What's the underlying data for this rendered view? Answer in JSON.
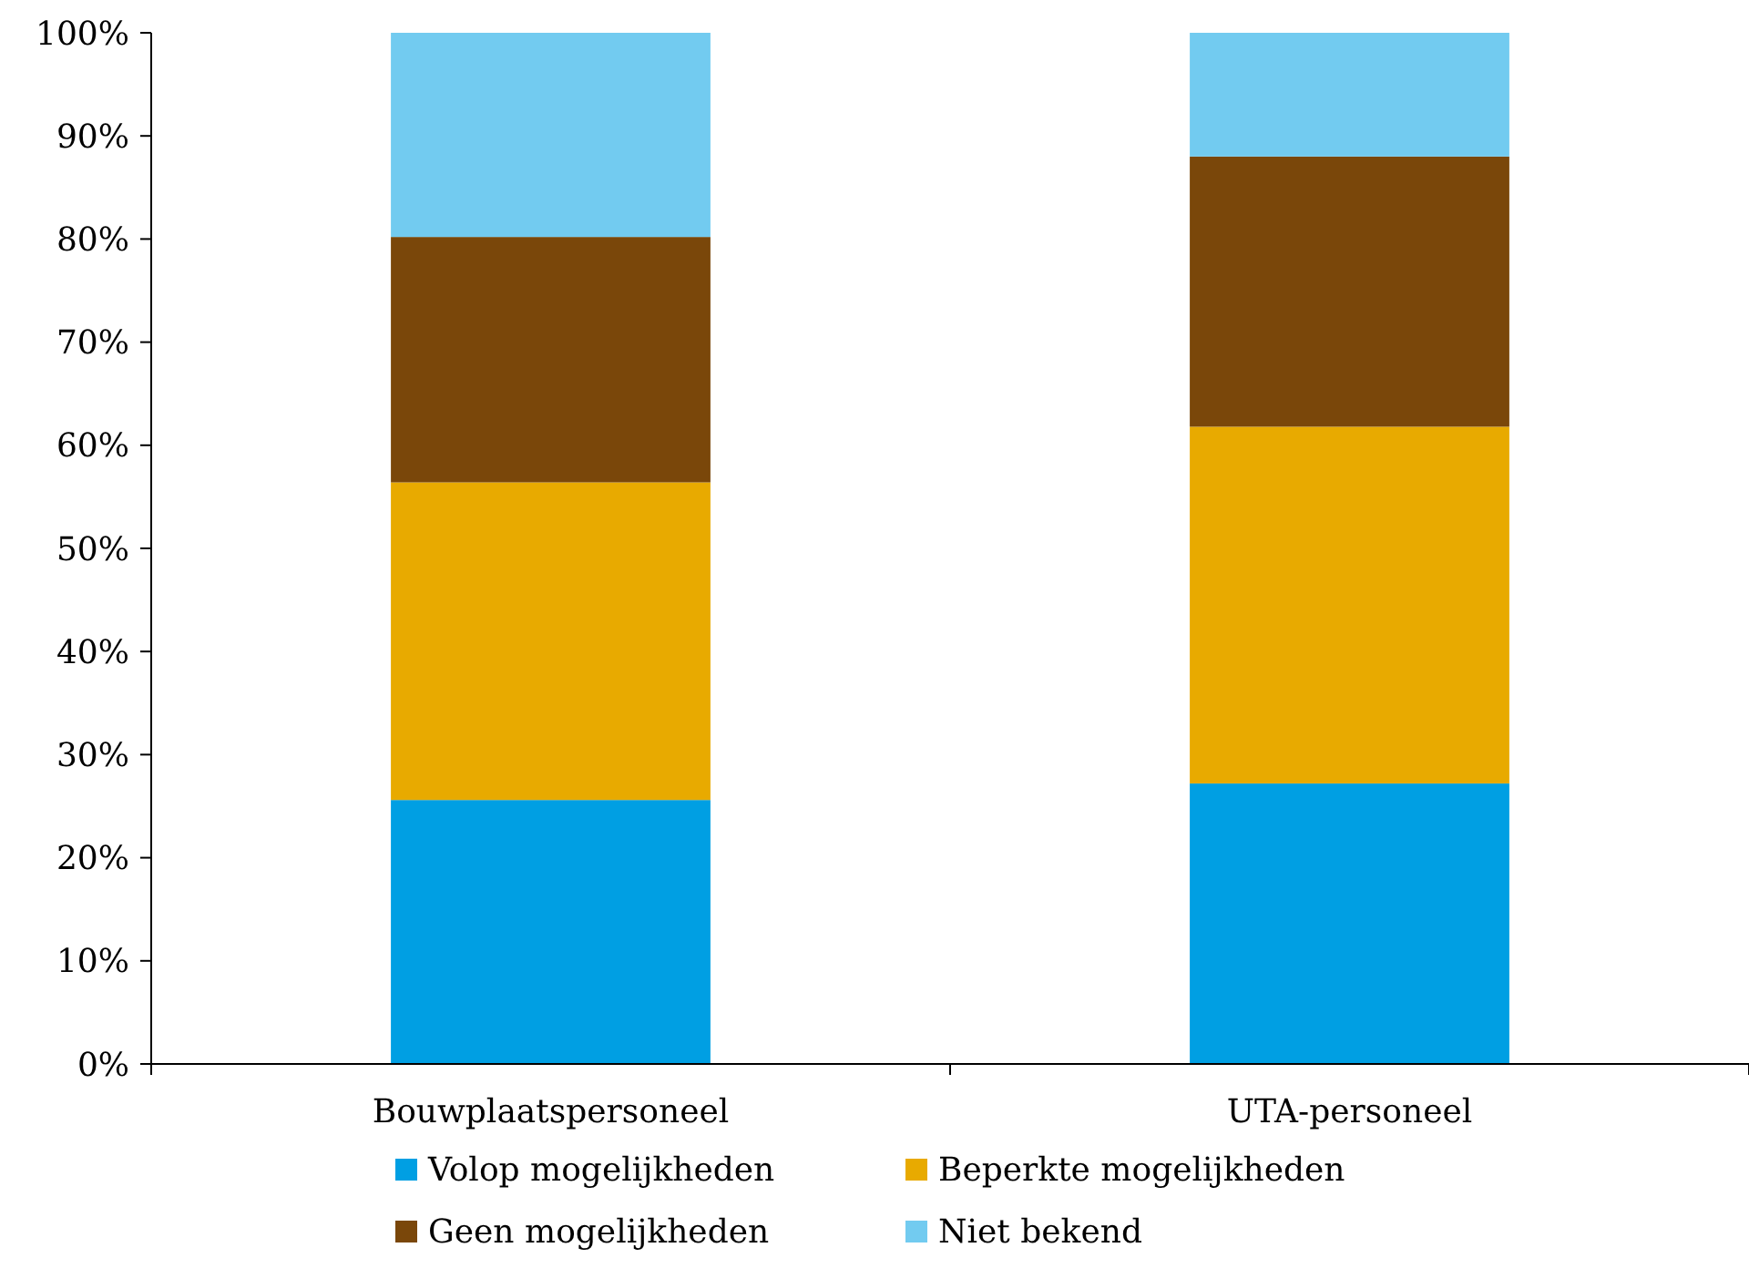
{
  "chart_data": {
    "type": "bar",
    "stacked": true,
    "categories": [
      "Bouwplaatspersoneel",
      "UTA-personeel"
    ],
    "series": [
      {
        "name": "Volop mogelijkheden",
        "color": "#009fe3",
        "values": [
          25.6,
          27.2
        ]
      },
      {
        "name": "Beperkte mogelijkheden",
        "color": "#e8aa00",
        "values": [
          30.8,
          34.6
        ]
      },
      {
        "name": "Geen mogelijkheden",
        "color": "#7a470a",
        "values": [
          23.8,
          26.2
        ]
      },
      {
        "name": "Niet bekend",
        "color": "#72cbf0",
        "values": [
          19.8,
          12.0
        ]
      }
    ],
    "ylim": [
      0,
      100
    ],
    "yticks": [
      {
        "value": 0,
        "label": "0%"
      },
      {
        "value": 10,
        "label": "10%"
      },
      {
        "value": 20,
        "label": "20%"
      },
      {
        "value": 30,
        "label": "30%"
      },
      {
        "value": 40,
        "label": "40%"
      },
      {
        "value": 50,
        "label": "50%"
      },
      {
        "value": 60,
        "label": "60%"
      },
      {
        "value": 70,
        "label": "70%"
      },
      {
        "value": 80,
        "label": "80%"
      },
      {
        "value": 90,
        "label": "90%"
      },
      {
        "value": 100,
        "label": "100%"
      }
    ],
    "legend": "bottom"
  }
}
